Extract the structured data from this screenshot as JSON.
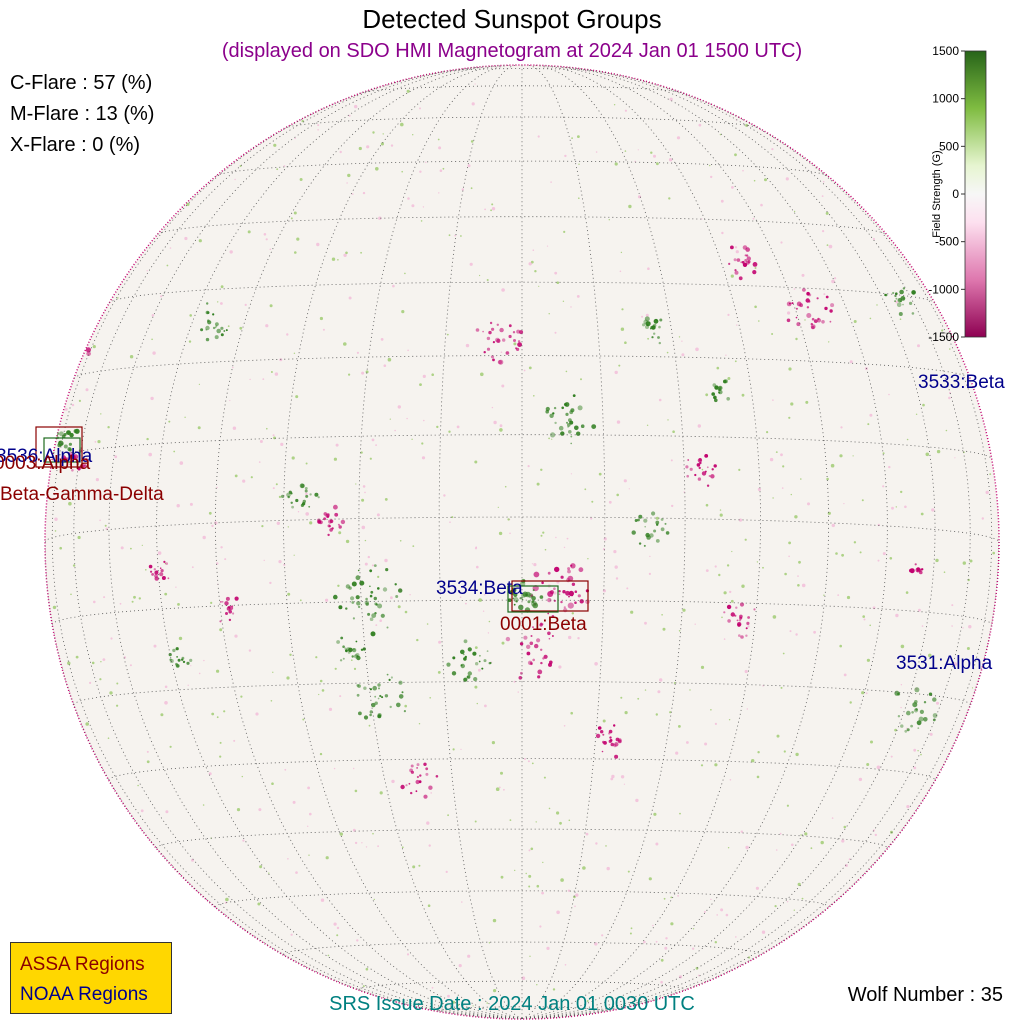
{
  "title": "Detected Sunspot Groups",
  "subtitle": "(displayed on SDO HMI Magnetogram at 2024 Jan 01 1500 UTC)",
  "flare_probabilities": [
    {
      "label": "C-Flare : 57 (%)"
    },
    {
      "label": "M-Flare : 13 (%)"
    },
    {
      "label": "X-Flare :  0 (%)"
    }
  ],
  "regions": [
    {
      "id": "noaa-3536",
      "text": "3536:Alpha",
      "source": "NOAA"
    },
    {
      "id": "assa-0003",
      "text": "0003:Alpha",
      "source": "ASSA"
    },
    {
      "id": "assa-beta-gamma-delta",
      "text": "Beta-Gamma-Delta",
      "source": "ASSA"
    },
    {
      "id": "noaa-3533",
      "text": "3533:Beta",
      "source": "NOAA"
    },
    {
      "id": "noaa-3534",
      "text": "3534:Beta",
      "source": "NOAA"
    },
    {
      "id": "assa-0001",
      "text": "0001:Beta",
      "source": "ASSA"
    },
    {
      "id": "noaa-3531",
      "text": "3531:Alpha",
      "source": "NOAA"
    }
  ],
  "legend": {
    "assa": "ASSA Regions",
    "noaa": "NOAA Regions"
  },
  "srs_issue": "SRS Issue Date : 2024 Jan 01 0030 UTC",
  "wolf_number": "Wolf Number : 35",
  "colorbar": {
    "label": "Field Strength (G)",
    "ticks": [
      "1500",
      "1000",
      "500",
      "0",
      "-500",
      "-1000",
      "-1500"
    ],
    "range": [
      -1500,
      1500
    ]
  },
  "colors": {
    "subtitle": "#8b008b",
    "assa": "#8b0000",
    "noaa": "#00008b",
    "legend_bg": "#ffd700",
    "srs": "#008080",
    "positive": "#2e7d1e",
    "negative": "#c2006e",
    "disk": "#f6f3ef"
  }
}
